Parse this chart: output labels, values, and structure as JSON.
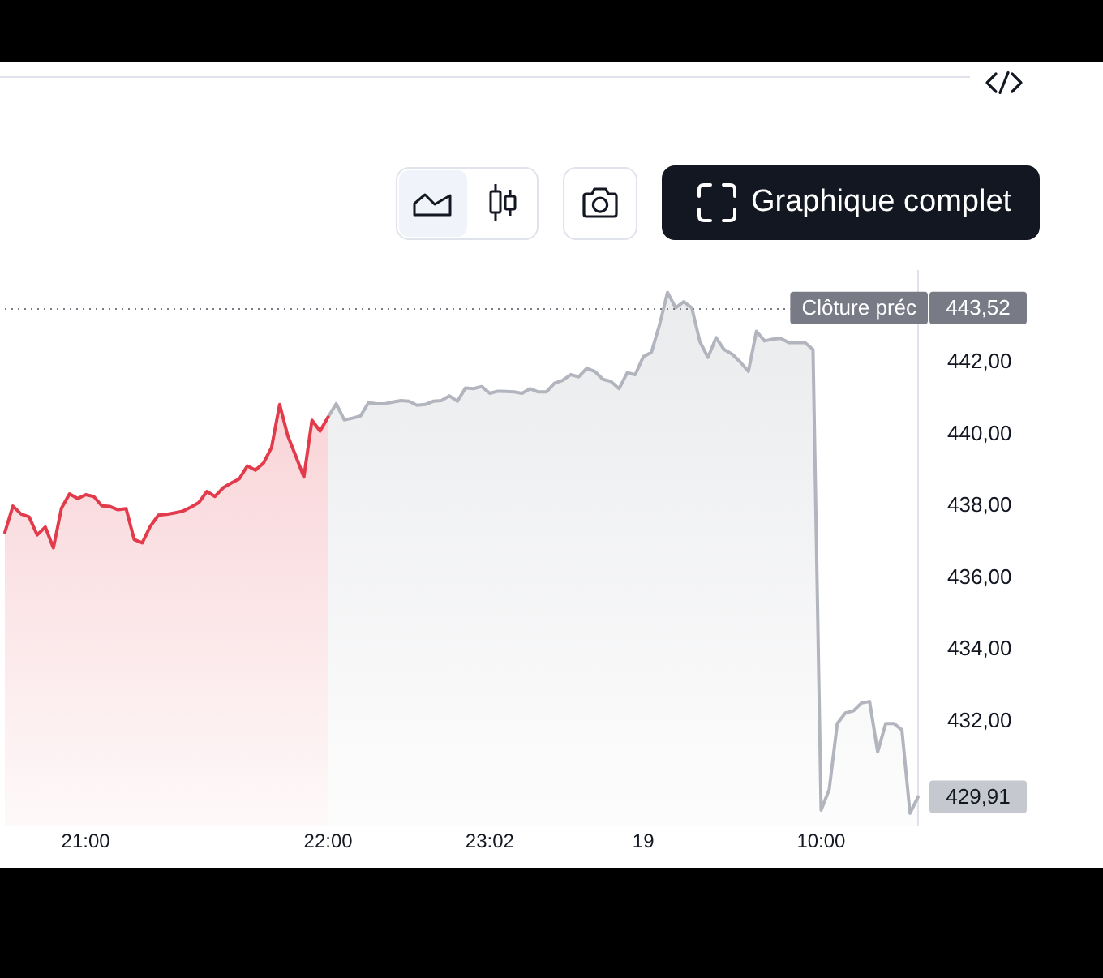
{
  "chart_data": {
    "type": "area",
    "categories": [
      null,
      null,
      null,
      null,
      null,
      null,
      null,
      null,
      null,
      null,
      "21:00",
      null,
      null,
      null,
      null,
      null,
      null,
      null,
      null,
      null,
      null,
      null,
      null,
      null,
      null,
      null,
      null,
      null,
      null,
      null,
      null,
      null,
      null,
      null,
      null,
      null,
      null,
      null,
      null,
      null,
      "22:00",
      null,
      null,
      null,
      null,
      null,
      null,
      null,
      null,
      null,
      null,
      null,
      null,
      null,
      null,
      null,
      null,
      null,
      null,
      null,
      "23:02",
      null,
      null,
      null,
      null,
      null,
      null,
      null,
      null,
      null,
      null,
      null,
      null,
      null,
      null,
      null,
      null,
      null,
      null,
      "19",
      null,
      null,
      null,
      null,
      null,
      null,
      null,
      null,
      null,
      null,
      null,
      null,
      null,
      null,
      null,
      null,
      null,
      null,
      null,
      null,
      null,
      "10:00",
      null,
      null,
      null,
      null,
      null,
      null,
      null,
      null,
      null,
      null,
      null,
      null
    ],
    "series": [
      {
        "color": "#e23b4b",
        "values": [
          437.27,
          438,
          437.78,
          437.7,
          437.2,
          437.42,
          436.84,
          437.94,
          438.34,
          438.21,
          438.32,
          438.27,
          438.01,
          437.99,
          437.9,
          437.93,
          437.07,
          436.98,
          437.44,
          437.75,
          437.77,
          437.81,
          437.86,
          437.97,
          438.1,
          438.41,
          438.27,
          438.51,
          438.64,
          438.76,
          439.12,
          439,
          439.2,
          439.63,
          440.83,
          439.96,
          439.39,
          438.81,
          440.39,
          440.09,
          440.48,
          null,
          null,
          null,
          null,
          null,
          null,
          null,
          null,
          null,
          null,
          null,
          null,
          null,
          null,
          null,
          null,
          null,
          null,
          null,
          null,
          null,
          null,
          null,
          null,
          null,
          null,
          null,
          null,
          null,
          null,
          null,
          null,
          null,
          null,
          null,
          null,
          null,
          null,
          null,
          null,
          null,
          null,
          null,
          null,
          null,
          null,
          null,
          null,
          null,
          null,
          null,
          null,
          null,
          null,
          null,
          null,
          null,
          null,
          null,
          null,
          null,
          null,
          null,
          null,
          null,
          null,
          null,
          null,
          null,
          null,
          null,
          null,
          null
        ]
      },
      {
        "color": "#b2b5be",
        "values": [
          null,
          null,
          null,
          null,
          null,
          null,
          null,
          null,
          null,
          null,
          null,
          null,
          null,
          null,
          null,
          null,
          null,
          null,
          null,
          null,
          null,
          null,
          null,
          null,
          null,
          null,
          null,
          null,
          null,
          null,
          null,
          null,
          null,
          null,
          null,
          null,
          null,
          null,
          null,
          null,
          440.48,
          440.85,
          440.4,
          440.45,
          440.51,
          440.88,
          440.85,
          440.85,
          440.9,
          440.94,
          440.92,
          440.81,
          440.83,
          440.92,
          440.94,
          441.07,
          440.92,
          441.29,
          441.27,
          441.33,
          441.14,
          441.2,
          441.19,
          441.18,
          441.14,
          441.27,
          441.18,
          441.18,
          441.42,
          441.5,
          441.66,
          441.6,
          441.84,
          441.75,
          441.53,
          441.47,
          441.27,
          441.71,
          441.66,
          442.16,
          442.28,
          443.04,
          443.95,
          443.52,
          443.69,
          443.52,
          442.58,
          442.14,
          442.69,
          442.36,
          442.23,
          442.01,
          441.75,
          442.87,
          442.6,
          442.65,
          442.67,
          442.55,
          442.55,
          442.55,
          442.36,
          429.54,
          430.11,
          431.95,
          432.24,
          432.3,
          432.52,
          432.56,
          431.16,
          431.95,
          431.95,
          431.77,
          429.45,
          429.91
        ],
        "value_labels": [
          null,
          null,
          null,
          null,
          null,
          null,
          null,
          null,
          null,
          null,
          null,
          null,
          null,
          null,
          null,
          null,
          null,
          null,
          null,
          null,
          null,
          null,
          null,
          null,
          null,
          null,
          null,
          null,
          null,
          null,
          null,
          null,
          null,
          null,
          null,
          null,
          null,
          null,
          null,
          null,
          null,
          null,
          null,
          null,
          null,
          null,
          null,
          null,
          null,
          null,
          null,
          null,
          null,
          null,
          null,
          null,
          null,
          null,
          null,
          null,
          null,
          null,
          null,
          null,
          null,
          null,
          null,
          null,
          null,
          null,
          null,
          null,
          null,
          null,
          null,
          null,
          null,
          null,
          null,
          null,
          null,
          null,
          null,
          null,
          null,
          null,
          null,
          null,
          null,
          null,
          null,
          null,
          null,
          null,
          null,
          null,
          null,
          null,
          null,
          null,
          null,
          null,
          null,
          null,
          null,
          null,
          null,
          null,
          null,
          null,
          null,
          null,
          null,
          "429,91"
        ]
      }
    ],
    "ylim": [
      429.1,
      444.55
    ],
    "yticks": [
      {
        "value": 432,
        "label": "432,00"
      },
      {
        "value": 434,
        "label": "434,00"
      },
      {
        "value": 436,
        "label": "436,00"
      },
      {
        "value": 438,
        "label": "438,00"
      },
      {
        "value": 440,
        "label": "440,00"
      },
      {
        "value": 442,
        "label": "442,00"
      }
    ],
    "ref_lines": [
      {
        "axis": "y",
        "value": 443.52,
        "label": "Clôture préc",
        "color": "#787b86",
        "line_style": "dotted"
      }
    ],
    "annotations": [
      "Graphique complet",
      "443,52"
    ]
  }
}
